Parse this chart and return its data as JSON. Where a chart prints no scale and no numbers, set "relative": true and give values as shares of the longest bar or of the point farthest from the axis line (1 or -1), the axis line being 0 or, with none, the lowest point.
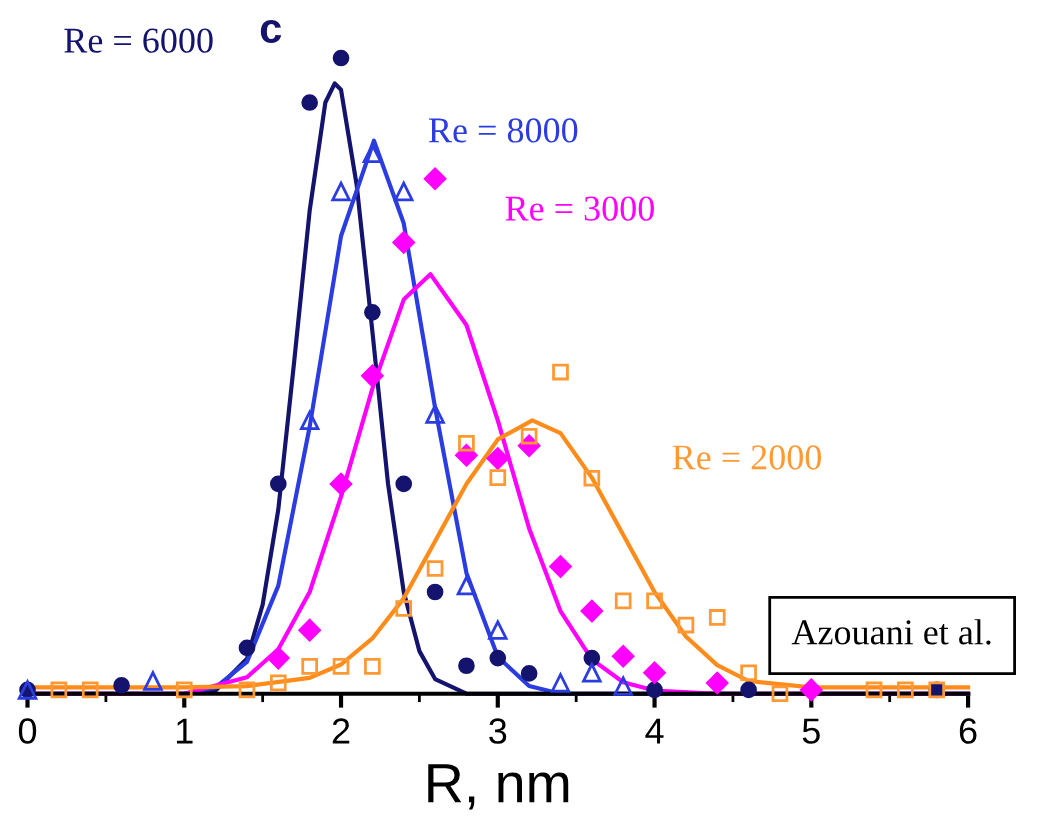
{
  "chart_data": {
    "type": "scatter",
    "relative": true,
    "xlabel": "R, nm",
    "xlim": [
      0,
      6
    ],
    "xticks": [
      0,
      1,
      2,
      3,
      4,
      5,
      6
    ],
    "tick_labels": "x",
    "grid": false,
    "legend": false,
    "annotations": [
      "c",
      "Azouani et al."
    ],
    "series": [
      {
        "name": "Re = 6000",
        "color": "#14146e",
        "marker": "circle",
        "x": [
          0,
          0.6,
          1.4,
          1.6,
          1.8,
          2.0,
          2.2,
          2.4,
          2.6,
          2.8,
          3.0,
          3.2,
          3.6,
          4.0,
          4.6,
          5.8
        ],
        "values": [
          0.006,
          0.013,
          0.072,
          0.33,
          0.93,
          1.0,
          0.6,
          0.33,
          0.16,
          0.044,
          0.056,
          0.032,
          0.056,
          0.006,
          0.006,
          0.006
        ]
      },
      {
        "name": "Re = 8000",
        "color": "#2b3de0",
        "marker": "triangle",
        "x": [
          0,
          0.8,
          1.8,
          2.0,
          2.2,
          2.4,
          2.6,
          2.8,
          3.0,
          3.4,
          3.6,
          3.8
        ],
        "values": [
          0.006,
          0.02,
          0.43,
          0.79,
          0.85,
          0.79,
          0.44,
          0.17,
          0.1,
          0.017,
          0.033,
          0.012
        ]
      },
      {
        "name": "Re = 3000",
        "color": "#ff00ff",
        "marker": "diamond",
        "x": [
          1.6,
          1.8,
          2.0,
          2.2,
          2.4,
          2.6,
          2.8,
          3.0,
          3.2,
          3.4,
          3.6,
          3.8,
          4.0,
          4.4,
          5.0
        ],
        "values": [
          0.056,
          0.1,
          0.33,
          0.5,
          0.71,
          0.81,
          0.375,
          0.37,
          0.39,
          0.2,
          0.13,
          0.059,
          0.033,
          0.017,
          0.006
        ]
      },
      {
        "name": "Re = 2000",
        "color": "#ff9933",
        "marker": "square",
        "x": [
          0.2,
          0.4,
          1.0,
          1.4,
          1.6,
          1.8,
          2.0,
          2.2,
          2.4,
          2.6,
          2.8,
          3.0,
          3.2,
          3.4,
          3.6,
          3.8,
          4.0,
          4.2,
          4.4,
          4.6,
          4.8,
          5.4,
          5.6,
          5.8
        ],
        "values": [
          0.006,
          0.006,
          0.006,
          0.006,
          0.017,
          0.043,
          0.043,
          0.043,
          0.134,
          0.197,
          0.394,
          0.34,
          0.405,
          0.506,
          0.339,
          0.146,
          0.146,
          0.108,
          0.12,
          0.033,
          0.0,
          0.006,
          0.006,
          0.006
        ]
      },
      {
        "type": "line",
        "color": "#14146e",
        "marker": "none",
        "x": [
          0,
          1.0,
          1.2,
          1.4,
          1.5,
          1.6,
          1.7,
          1.8,
          1.9,
          1.96,
          2.0,
          2.1,
          2.2,
          2.3,
          2.4,
          2.5,
          2.6,
          2.8,
          3.0,
          6.0
        ],
        "values": [
          0,
          0,
          0.005,
          0.055,
          0.14,
          0.29,
          0.52,
          0.76,
          0.93,
          0.96,
          0.95,
          0.8,
          0.57,
          0.33,
          0.16,
          0.067,
          0.023,
          0,
          0,
          0
        ]
      },
      {
        "type": "line",
        "color": "#2b3de0",
        "marker": "none",
        "x": [
          0,
          1.0,
          1.2,
          1.4,
          1.6,
          1.8,
          2.0,
          2.21,
          2.4,
          2.6,
          2.8,
          3.0,
          3.2,
          3.4,
          6.0
        ],
        "values": [
          0,
          0,
          0.01,
          0.05,
          0.17,
          0.42,
          0.72,
          0.87,
          0.74,
          0.45,
          0.19,
          0.058,
          0.012,
          0,
          0
        ]
      },
      {
        "type": "line",
        "color": "#ff00ff",
        "marker": "none",
        "x": [
          0,
          1.0,
          1.4,
          1.6,
          1.8,
          2.0,
          2.2,
          2.4,
          2.57,
          2.8,
          3.0,
          3.2,
          3.4,
          3.6,
          3.8,
          4.0,
          4.4,
          6.0
        ],
        "values": [
          0,
          0,
          0.026,
          0.07,
          0.16,
          0.31,
          0.48,
          0.62,
          0.66,
          0.58,
          0.43,
          0.26,
          0.13,
          0.054,
          0.018,
          0.005,
          0,
          0
        ]
      },
      {
        "type": "line",
        "color": "#ff8c1a",
        "marker": "none",
        "x": [
          0,
          1.0,
          1.4,
          1.8,
          2.0,
          2.2,
          2.4,
          2.6,
          2.8,
          3.0,
          3.22,
          3.4,
          3.6,
          3.8,
          4.0,
          4.2,
          4.4,
          4.6,
          5.0,
          6.0
        ],
        "values": [
          0.01,
          0.01,
          0.012,
          0.025,
          0.046,
          0.087,
          0.15,
          0.24,
          0.33,
          0.4,
          0.43,
          0.41,
          0.34,
          0.25,
          0.16,
          0.09,
          0.045,
          0.02,
          0.01,
          0.01
        ]
      }
    ]
  }
}
